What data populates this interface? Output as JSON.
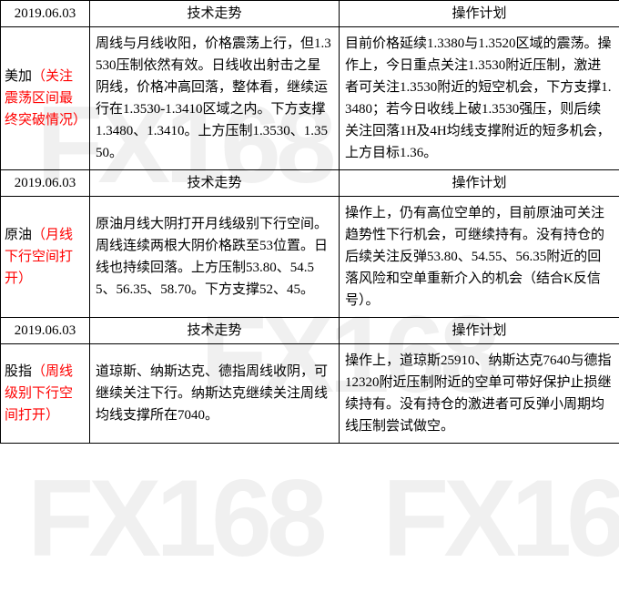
{
  "watermark": "FX168",
  "colors": {
    "border": "#000000",
    "red": "#ff0000",
    "text": "#000000",
    "bg": "#ffffff",
    "watermark": "rgba(0,0,0,0.06)"
  },
  "headers": {
    "trend": "技术走势",
    "plan": "操作计划"
  },
  "rows": [
    {
      "date": "2019.06.03",
      "label_main": "美加",
      "label_note": "（关注震荡区间最终突破情况）",
      "trend": "周线与月线收阳，价格震荡上行，但1.3530压制依然有效。日线收出射击之星阴线，价格冲高回落，整体看，继续运行在1.3530-1.3410区域之内。下方支撑1.3480、1.3410。上方压制1.3530、1.3550。",
      "plan": "目前价格延续1.3380与1.3520区域的震荡。操作上，今日重点关注1.3530附近压制，激进者可关注1.3530附近的短空机会，下方支撑1.3480；若今日收线上破1.3530强压，则后续关注回落1H及4H均线支撑附近的短多机会，上方目标1.36。"
    },
    {
      "date": "2019.06.03",
      "label_main": "原油",
      "label_note": "（月线下行空间打开）",
      "trend": "原油月线大阴打开月线级别下行空间。周线连续两根大阴价格跌至53位置。日线也持续回落。上方压制53.80、54.55、56.35、58.70。下方支撑52、45。",
      "plan": "操作上，仍有高位空单的，目前原油可关注趋势性下行机会，可继续持有。没有持仓的后续关注反弹53.80、54.55、56.35附近的回落风险和空单重新介入的机会（结合K反信号）。"
    },
    {
      "date": "2019.06.03",
      "label_main": "股指",
      "label_note": "（周线级别下行空间打开）",
      "trend": "道琼斯、纳斯达克、德指周线收阴，可继续关注下行。纳斯达克继续关注周线均线支撑所在7040。",
      "plan": "操作上，道琼斯25910、纳斯达克7640与德指12320附近压制附近的空单可带好保护止损继续持有。没有持仓的激进者可反弹小周期均线压制尝试做空。"
    }
  ]
}
